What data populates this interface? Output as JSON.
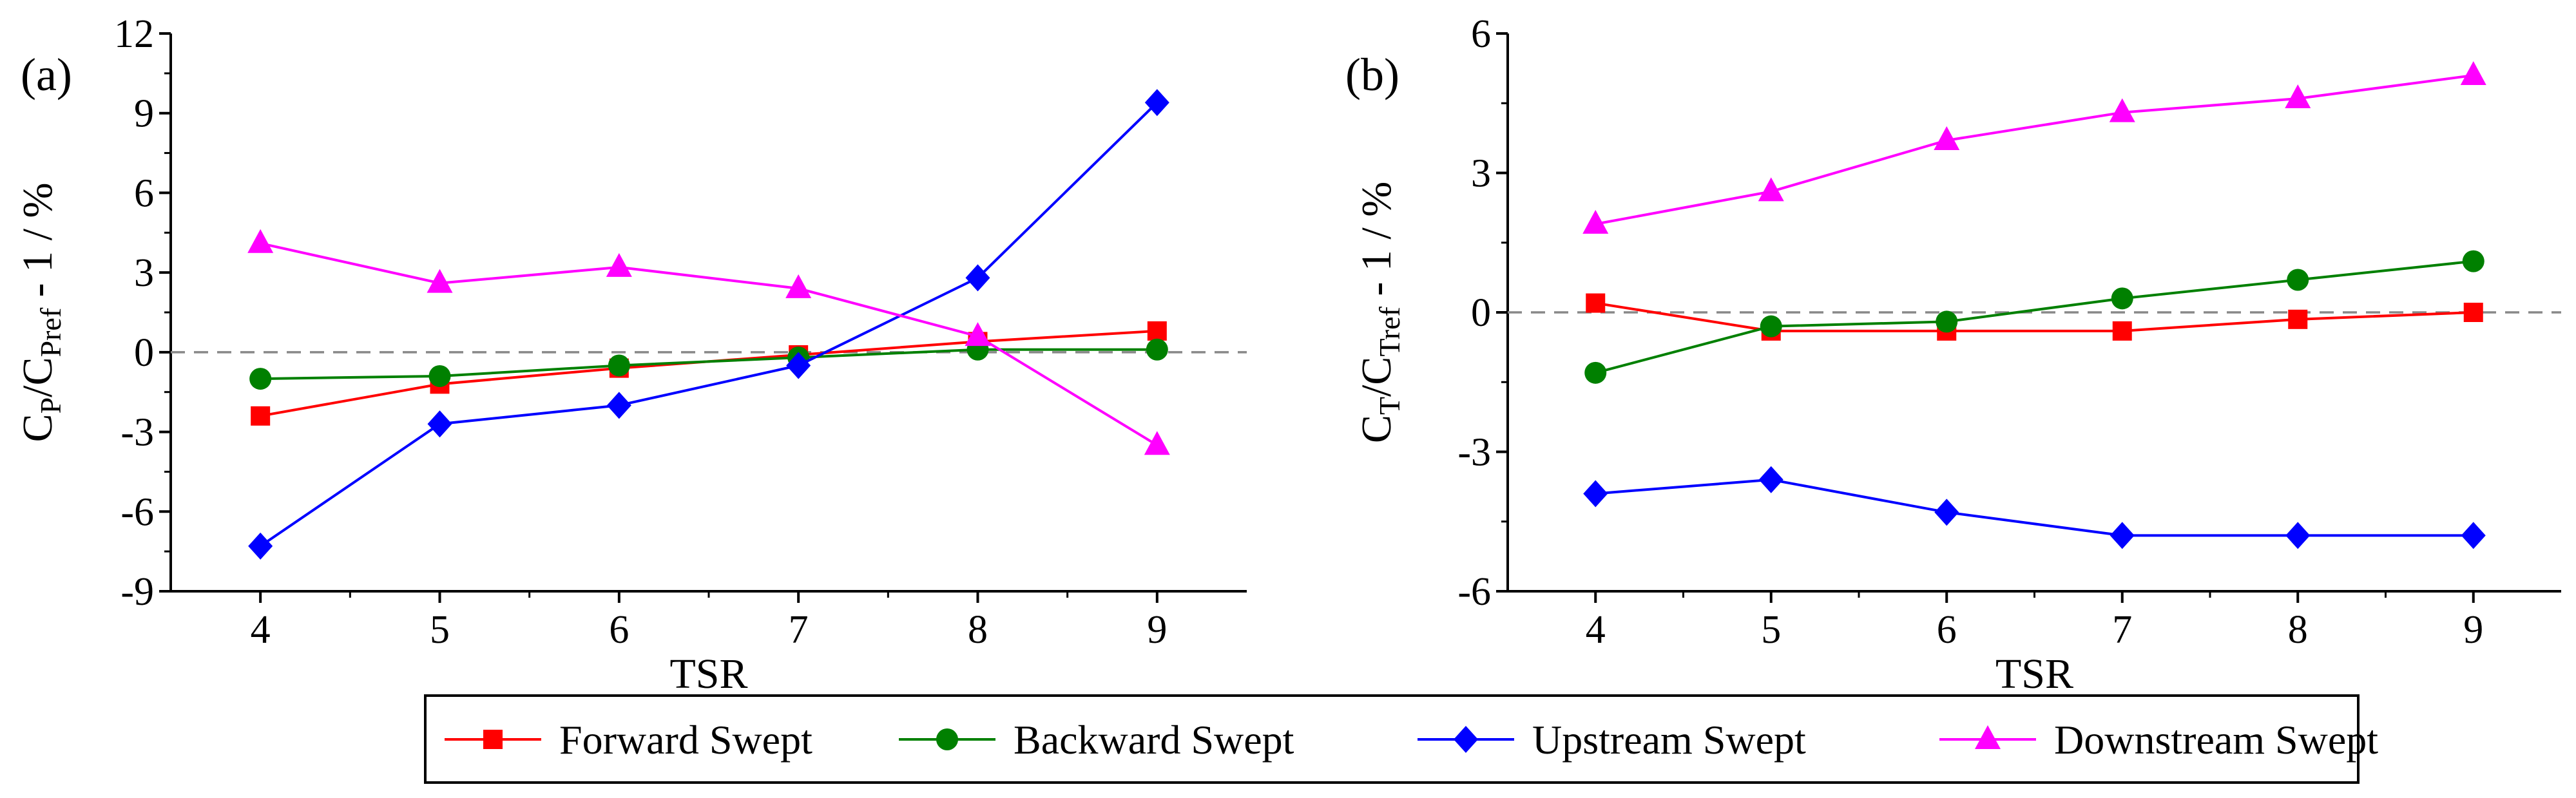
{
  "legend": [
    {
      "name": "Forward Swept",
      "color": "#ff0000",
      "marker": "square"
    },
    {
      "name": "Backward Swept",
      "color": "#008000",
      "marker": "circle"
    },
    {
      "name": "Upstream Swept",
      "color": "#0000ff",
      "marker": "diamond"
    },
    {
      "name": "Downstream Swept",
      "color": "#ff00ff",
      "marker": "triangle"
    }
  ],
  "chart_data": [
    {
      "type": "line",
      "panel_label": "(a)",
      "xlabel": "TSR",
      "ylabel": {
        "base1": "C",
        "sub1": "P",
        "slash": "/C",
        "sub2": "Pref",
        "tail": " - 1 / %"
      },
      "x": [
        4,
        5,
        6,
        7,
        8,
        9
      ],
      "xlim": [
        3.5,
        9.5
      ],
      "ylim": [
        -9,
        12
      ],
      "yticks": [
        -9,
        -6,
        -3,
        0,
        3,
        6,
        9,
        12
      ],
      "reference_line": 0,
      "series": [
        {
          "name": "Forward Swept",
          "values": [
            -2.4,
            -1.2,
            -0.6,
            -0.1,
            0.4,
            0.8
          ]
        },
        {
          "name": "Backward Swept",
          "values": [
            -1.0,
            -0.9,
            -0.5,
            -0.2,
            0.1,
            0.1
          ]
        },
        {
          "name": "Upstream Swept",
          "values": [
            -7.3,
            -2.7,
            -2.0,
            -0.5,
            2.8,
            9.4
          ]
        },
        {
          "name": "Downstream Swept",
          "values": [
            4.1,
            2.6,
            3.2,
            2.4,
            0.6,
            -3.5
          ]
        }
      ]
    },
    {
      "type": "line",
      "panel_label": "(b)",
      "xlabel": "TSR",
      "ylabel": {
        "base1": "C",
        "sub1": "T",
        "slash": "/C",
        "sub2": "Tref",
        "tail": " - 1 / %"
      },
      "x": [
        4,
        5,
        6,
        7,
        8,
        9
      ],
      "xlim": [
        3.5,
        9.5
      ],
      "ylim": [
        -6,
        6
      ],
      "yticks": [
        -6,
        -3,
        0,
        3,
        6
      ],
      "reference_line": 0,
      "series": [
        {
          "name": "Forward Swept",
          "values": [
            0.2,
            -0.4,
            -0.4,
            -0.4,
            -0.15,
            0.0
          ]
        },
        {
          "name": "Backward Swept",
          "values": [
            -1.3,
            -0.3,
            -0.2,
            0.3,
            0.7,
            1.1
          ]
        },
        {
          "name": "Upstream Swept",
          "values": [
            -3.9,
            -3.6,
            -4.3,
            -4.8,
            -4.8,
            -4.8
          ]
        },
        {
          "name": "Downstream Swept",
          "values": [
            1.9,
            2.6,
            3.7,
            4.3,
            4.6,
            5.1
          ]
        }
      ]
    }
  ]
}
